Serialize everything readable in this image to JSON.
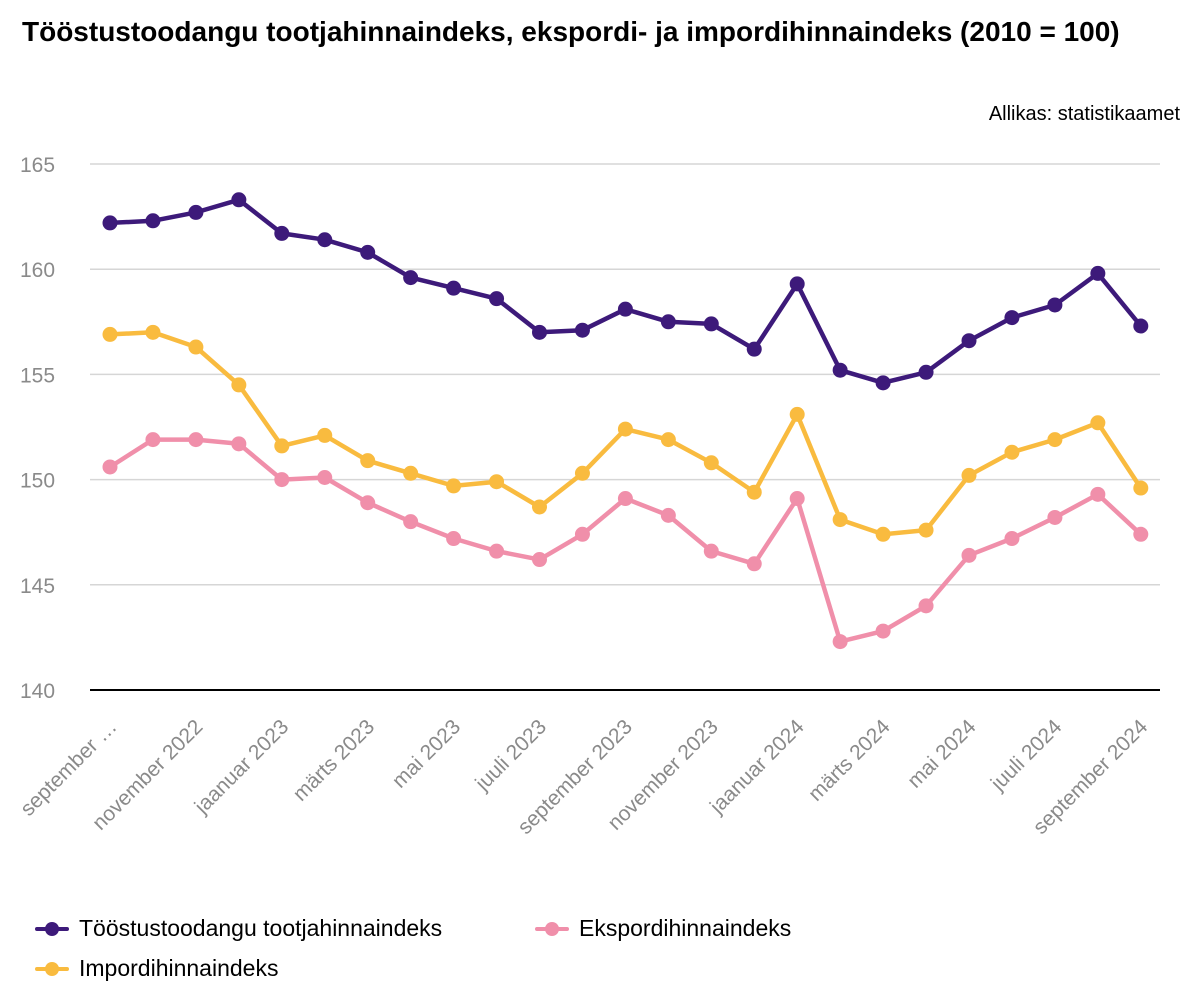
{
  "title": "Tööstustoodangu tootjahinnaindeks, ekspordi- ja impordihinnaindeks (2010 = 100)",
  "source": "Allikas: statistikaamet",
  "chart_data": {
    "type": "line",
    "title": "Tööstustoodangu tootjahinnaindeks, ekspordi- ja impordihinnaindeks (2010 = 100)",
    "ylim": [
      140,
      165
    ],
    "y_ticks": [
      140,
      145,
      150,
      155,
      160,
      165
    ],
    "grid": true,
    "legend_position": "bottom",
    "x_tick_labels": [
      "september …",
      "november 2022",
      "jaanuar 2023",
      "märts 2023",
      "mai 2023",
      "juuli 2023",
      "september 2023",
      "november 2023",
      "jaanuar 2024",
      "märts 2024",
      "mai 2024",
      "juuli 2024",
      "september 2024"
    ],
    "x_tick_every": 2,
    "series": [
      {
        "name": "Tööstustoodangu tootjahinnaindeks",
        "color": "#3d1a7a",
        "values": [
          162.2,
          162.3,
          162.7,
          163.3,
          161.7,
          161.4,
          160.8,
          159.6,
          159.1,
          158.6,
          157.0,
          157.1,
          158.1,
          157.5,
          157.4,
          156.2,
          159.3,
          155.2,
          154.6,
          155.1,
          156.6,
          157.7,
          158.3,
          159.8,
          157.3
        ]
      },
      {
        "name": "Ekspordihinnaindeks",
        "color": "#f08faa",
        "values": [
          150.6,
          151.9,
          151.9,
          151.7,
          150.0,
          150.1,
          148.9,
          148.0,
          147.2,
          146.6,
          146.2,
          147.4,
          149.1,
          148.3,
          146.6,
          146.0,
          149.1,
          142.3,
          142.8,
          144.0,
          146.4,
          147.2,
          148.2,
          149.3,
          147.4
        ]
      },
      {
        "name": "Impordihinnaindeks",
        "color": "#f9bb3f",
        "values": [
          156.9,
          157.0,
          156.3,
          154.5,
          151.6,
          152.1,
          150.9,
          150.3,
          149.7,
          149.9,
          148.7,
          150.3,
          152.4,
          151.9,
          150.8,
          149.4,
          153.1,
          148.1,
          147.4,
          147.6,
          150.2,
          151.3,
          151.9,
          152.7,
          149.6
        ]
      }
    ]
  }
}
